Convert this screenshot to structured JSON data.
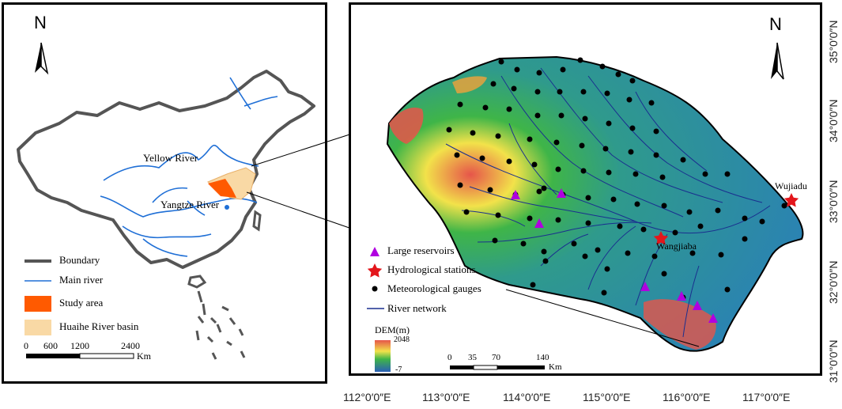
{
  "north_label": "N",
  "left_panel": {
    "labels": {
      "yellow_river": "Yellow River",
      "yangtze_river": "Yangtze River"
    },
    "legend": [
      {
        "label": "Boundary",
        "symbol": "thick-line",
        "color": "#555555"
      },
      {
        "label": "Main river",
        "symbol": "thin-line",
        "color": "#1f6fd6"
      },
      {
        "label": "Study area",
        "symbol": "fill",
        "color": "#ff5a00"
      },
      {
        "label": "Huaihe River basin",
        "symbol": "fill",
        "color": "#f9d9a5"
      }
    ],
    "scale_bar": {
      "ticks": [
        "0",
        "600",
        "1200",
        "2400"
      ],
      "unit": "Km"
    }
  },
  "right_panel": {
    "station_labels": {
      "wujiadu": "Wujiadu",
      "wangjiaba": "Wangjiaba"
    },
    "legend": [
      {
        "label": "Large reservoirs",
        "symbol": "triangle-icon",
        "color": "#b000e0"
      },
      {
        "label": "Hydrological stations",
        "symbol": "star-icon",
        "color": "#e3161b"
      },
      {
        "label": "Meteorological gauges",
        "symbol": "dot-icon",
        "color": "#000000"
      },
      {
        "label": "River network",
        "symbol": "line",
        "color": "#1a2f8f"
      }
    ],
    "dem": {
      "title": "DEM(m)",
      "max": "2048",
      "min": "-7"
    },
    "scale_bar": {
      "ticks": [
        "0",
        "35",
        "70",
        "140"
      ],
      "unit": "Km"
    }
  },
  "axes": {
    "x_ticks": [
      "112°0′0″E",
      "113°0′0″E",
      "114°0′0″E",
      "115°0′0″E",
      "116°0′0″E",
      "117°0′0″E"
    ],
    "y_ticks": [
      "35°0′0″N",
      "34°0′0″N",
      "33°0′0″N",
      "32°0′0″N",
      "31°0′0″N"
    ]
  },
  "colors": {
    "dem_high": "#e6554a",
    "dem_mid": "#f2e24a",
    "dem_low_green": "#3fb548",
    "dem_low": "#2a7fb8"
  }
}
